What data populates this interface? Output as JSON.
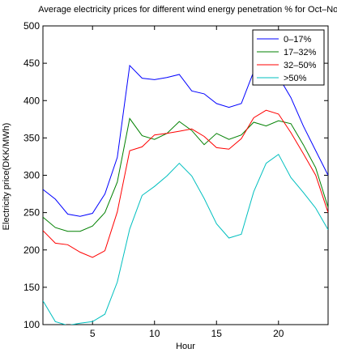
{
  "chart_data": {
    "type": "line",
    "title": "Average electricity prices for different wind energy penetration % for Oct–Nov",
    "xlabel": "Hour",
    "ylabel": "Electricity price(DKK/MWh)",
    "xlim": [
      1,
      24
    ],
    "ylim": [
      100,
      500
    ],
    "xticks": [
      5,
      10,
      15,
      20
    ],
    "yticks": [
      100,
      150,
      200,
      250,
      300,
      350,
      400,
      450,
      500
    ],
    "grid": false,
    "legend_position": "top-right",
    "x": [
      1,
      2,
      3,
      4,
      5,
      6,
      7,
      8,
      9,
      10,
      11,
      12,
      13,
      14,
      15,
      16,
      17,
      18,
      19,
      20,
      21,
      22,
      23,
      24
    ],
    "series": [
      {
        "name": "0–17%",
        "color": "#0000ff",
        "values": [
          281,
          268,
          248,
          245,
          249,
          275,
          324,
          447,
          430,
          428,
          431,
          435,
          413,
          409,
          396,
          391,
          396,
          439,
          453,
          432,
          404,
          366,
          333,
          300
        ]
      },
      {
        "name": "17–32%",
        "color": "#008000",
        "values": [
          244,
          230,
          225,
          225,
          232,
          250,
          291,
          376,
          353,
          348,
          356,
          372,
          360,
          341,
          356,
          348,
          354,
          371,
          366,
          373,
          369,
          341,
          310,
          257
        ]
      },
      {
        "name": "32–50%",
        "color": "#ff0000",
        "values": [
          226,
          209,
          207,
          197,
          190,
          199,
          251,
          333,
          338,
          354,
          356,
          359,
          362,
          352,
          337,
          335,
          349,
          377,
          387,
          382,
          357,
          329,
          300,
          250
        ]
      },
      {
        "name": ">50%",
        "color": "#00bfbf",
        "values": [
          132,
          104,
          99,
          102,
          104,
          114,
          157,
          228,
          273,
          285,
          299,
          316,
          299,
          269,
          235,
          216,
          221,
          278,
          316,
          328,
          297,
          277,
          256,
          227
        ]
      }
    ]
  }
}
